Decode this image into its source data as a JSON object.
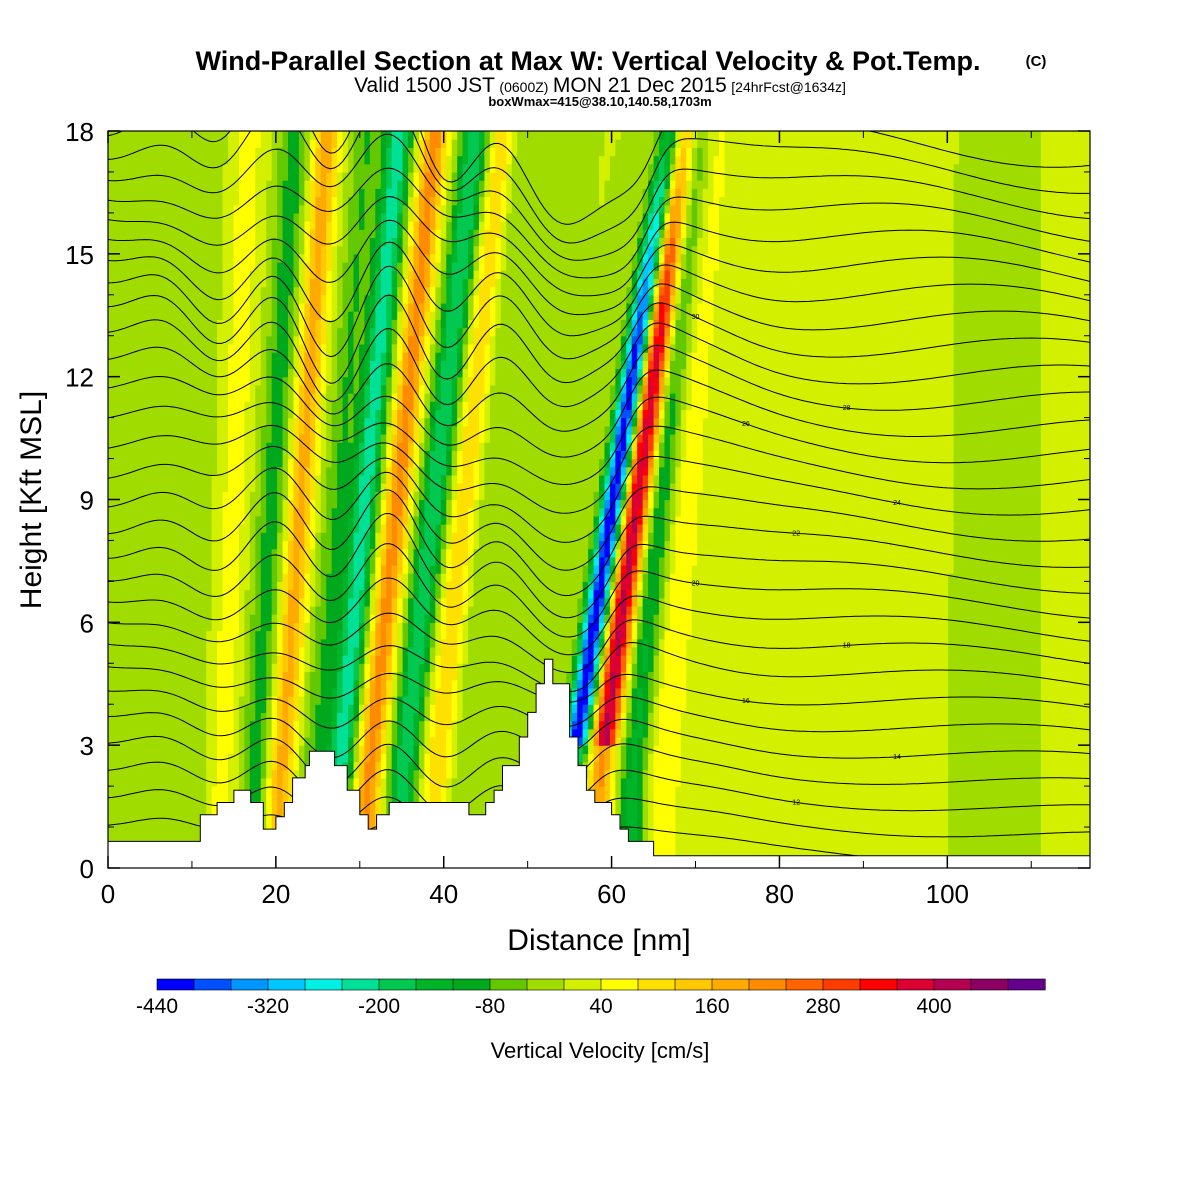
{
  "chart_data": {
    "type": "heatmap",
    "title": "Wind-Parallel Section at Max W: Vertical Velocity & Pot.Temp.",
    "title_mark": "(C)",
    "subtitle_main": "Valid 1500 JST",
    "subtitle_utc": "(0600Z)",
    "subtitle_date": "MON 21 Dec 2015",
    "subtitle_fcst": "[24hrFcst@1634z]",
    "subtitle2": "boxWmax=415@38.10,140.58,1703m",
    "xlabel": "Distance [nm]",
    "ylabel": "Height [Kft MSL]",
    "xlim": [
      0,
      117
    ],
    "ylim": [
      0,
      18
    ],
    "x_ticks": [
      "0",
      "20",
      "40",
      "60",
      "80",
      "100"
    ],
    "x_tick_values": [
      0,
      20,
      40,
      60,
      80,
      100
    ],
    "y_ticks": [
      "0",
      "3",
      "6",
      "9",
      "12",
      "15",
      "18"
    ],
    "y_tick_values": [
      0,
      3,
      6,
      9,
      12,
      15,
      18
    ],
    "colorbar": {
      "label": "Vertical Velocity [cm/s]",
      "min": -440,
      "step": 40,
      "tick_labels": [
        "-440",
        "-320",
        "-200",
        "-80",
        "40",
        "160",
        "280",
        "400"
      ],
      "tick_values": [
        -440,
        -320,
        -200,
        -80,
        40,
        160,
        280,
        400
      ],
      "colors": [
        "#0000ff",
        "#0050ff",
        "#0096ff",
        "#00c8ff",
        "#00f0e6",
        "#00e096",
        "#00c850",
        "#00b428",
        "#00a81e",
        "#64c800",
        "#a0dc00",
        "#d2f000",
        "#ffff00",
        "#ffe100",
        "#ffc800",
        "#ffaa00",
        "#ff8c00",
        "#ff6400",
        "#ff3c00",
        "#ff0000",
        "#dc0032",
        "#b40050",
        "#8c0064",
        "#64008c"
      ]
    },
    "velocity_features": [
      {
        "x": 17.5,
        "w": 1.8,
        "tilt": 0.3,
        "amp": -100
      },
      {
        "x": 20.5,
        "w": 1.6,
        "tilt": 0.35,
        "amp": 180
      },
      {
        "x": 24.5,
        "w": 1.7,
        "tilt": 0.4,
        "amp": -80
      },
      {
        "x": 27.5,
        "w": 1.6,
        "tilt": 0.45,
        "amp": -230
      },
      {
        "x": 31.0,
        "w": 1.6,
        "tilt": 0.5,
        "amp": 220
      },
      {
        "x": 35.0,
        "w": 1.7,
        "tilt": 0.55,
        "amp": -200
      },
      {
        "x": 39.0,
        "w": 1.6,
        "tilt": 0.5,
        "amp": 120
      },
      {
        "x": 43.0,
        "w": 2.0,
        "tilt": 0.4,
        "amp": -40
      },
      {
        "x": 13.5,
        "w": 2.0,
        "tilt": 0.2,
        "amp": 60
      },
      {
        "x": 8.0,
        "w": 4.0,
        "tilt": 0.1,
        "amp": -40
      },
      {
        "x": 55.0,
        "w": 1.4,
        "tilt": 0.75,
        "amp": -440
      },
      {
        "x": 58.5,
        "w": 1.5,
        "tilt": 0.65,
        "amp": 415
      },
      {
        "x": 62.5,
        "w": 1.7,
        "tilt": 0.5,
        "amp": -140
      },
      {
        "x": 66.0,
        "w": 2.5,
        "tilt": 0.35,
        "amp": 70
      },
      {
        "x": 75.0,
        "w": 4.0,
        "tilt": 0.2,
        "amp": 30
      },
      {
        "x": 95.0,
        "w": 6.0,
        "tilt": 0.1,
        "amp": 20
      },
      {
        "x": 103.0,
        "w": 3.0,
        "tilt": 0.05,
        "amp": -25
      }
    ],
    "terrain": {
      "x": [
        0,
        11,
        11,
        13,
        13,
        15,
        15,
        17,
        17,
        18.5,
        18.5,
        20,
        20,
        21,
        21,
        22,
        22,
        23.5,
        23.5,
        24,
        24,
        27,
        27,
        28.5,
        28.5,
        30,
        30,
        31,
        31,
        32,
        32,
        33.5,
        33.5,
        34.5,
        34.5,
        43,
        43,
        45,
        45,
        46,
        46,
        47,
        47,
        49,
        49,
        50,
        50,
        51,
        51,
        52,
        52,
        53,
        53,
        55,
        55,
        56,
        56,
        57,
        57,
        58,
        58,
        59,
        59,
        60,
        60,
        61,
        61,
        62,
        62,
        65,
        65,
        117
      ],
      "y": [
        0.65,
        0.65,
        1.3,
        1.3,
        1.6,
        1.6,
        1.9,
        1.9,
        1.6,
        1.6,
        0.95,
        0.95,
        1.25,
        1.25,
        1.6,
        1.6,
        2.2,
        2.2,
        2.5,
        2.5,
        2.85,
        2.85,
        2.5,
        2.5,
        1.9,
        1.9,
        1.3,
        1.3,
        0.95,
        0.95,
        1.3,
        1.3,
        1.6,
        1.6,
        1.6,
        1.6,
        1.3,
        1.3,
        1.6,
        1.6,
        1.9,
        1.9,
        2.5,
        2.5,
        3.2,
        3.2,
        3.8,
        3.8,
        4.5,
        4.5,
        5.1,
        5.1,
        4.5,
        4.5,
        3.2,
        3.2,
        2.5,
        2.5,
        1.9,
        1.9,
        1.6,
        1.6,
        1.6,
        1.6,
        1.3,
        1.3,
        0.95,
        0.95,
        0.65,
        0.65,
        0.3,
        0.3
      ]
    },
    "theta_contours": {
      "levels_k": [
        10,
        11,
        12,
        13,
        14,
        15,
        16,
        17,
        18,
        19,
        20,
        21,
        22,
        23,
        24,
        25,
        26,
        27,
        28,
        29,
        30,
        31,
        32,
        33,
        34,
        35,
        36,
        37,
        38
      ],
      "label_levels": [
        12,
        14,
        16,
        18,
        20,
        22,
        24,
        26,
        28,
        30
      ]
    }
  }
}
